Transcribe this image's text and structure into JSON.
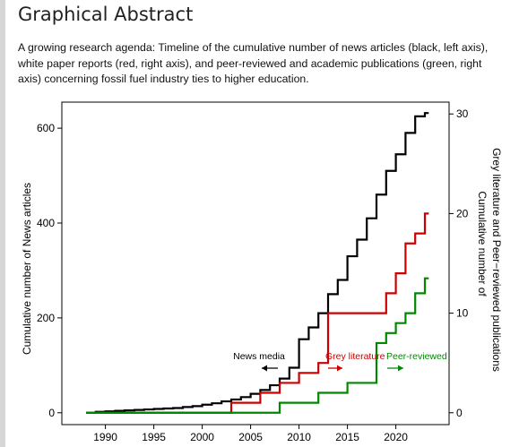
{
  "page": {
    "heading": "Graphical Abstract",
    "caption": "A growing research agenda: Timeline of the cumulative number of news articles (black, left axis), white paper reports (red, right axis), and peer-reviewed and academic publications (green, right axis) concerning fossil fuel industry ties to higher education."
  },
  "chart_data": {
    "type": "line",
    "step": true,
    "title": "",
    "xlabel": "",
    "ylabel": "Cumulative number of News articles",
    "ylabel_right": "Cumulative number of Grey literature and Peer−reviewed publications",
    "xlim": [
      1985.5,
      2025.5
    ],
    "ylim": [
      -25,
      655
    ],
    "ylim_right": [
      -1.19,
      31.19
    ],
    "xticks": [
      1990,
      1995,
      2000,
      2005,
      2010,
      2015,
      2020
    ],
    "yticks": [
      0,
      200,
      400,
      600
    ],
    "yticks_right": [
      0,
      10,
      20,
      30
    ],
    "grid": false,
    "series": [
      {
        "name": "News media",
        "axis": "left",
        "color": "#000000",
        "x": [
          1988,
          1989,
          1990,
          1991,
          1992,
          1993,
          1994,
          1995,
          1996,
          1997,
          1998,
          1999,
          2000,
          2001,
          2002,
          2003,
          2004,
          2005,
          2006,
          2007,
          2008,
          2009,
          2010,
          2011,
          2012,
          2013,
          2014,
          2015,
          2016,
          2017,
          2018,
          2019,
          2020,
          2021,
          2022,
          2023
        ],
        "values": [
          0,
          2,
          3,
          4,
          5,
          6,
          7,
          8,
          9,
          10,
          12,
          14,
          17,
          20,
          24,
          28,
          33,
          40,
          48,
          58,
          72,
          95,
          155,
          180,
          210,
          250,
          280,
          330,
          365,
          410,
          460,
          510,
          545,
          590,
          625,
          632
        ]
      },
      {
        "name": "Grey literature",
        "axis": "right",
        "color": "#cc0000",
        "x": [
          1988,
          2003,
          2006,
          2008,
          2010,
          2012,
          2013,
          2016,
          2019,
          2020,
          2021,
          2022,
          2023
        ],
        "values": [
          0,
          1,
          2,
          3,
          4,
          5,
          10,
          10,
          12,
          14,
          17,
          18,
          20
        ]
      },
      {
        "name": "Peer-reviewed",
        "axis": "right",
        "color": "#008800",
        "x": [
          1988,
          2008,
          2012,
          2015,
          2018,
          2019,
          2020,
          2021,
          2022,
          2023
        ],
        "values": [
          0,
          1,
          2,
          3,
          7,
          8,
          9,
          10,
          12,
          13.5
        ]
      }
    ],
    "annotations": [
      {
        "text": "News media",
        "color": "#000000",
        "arrow": "left"
      },
      {
        "text": "Grey literature",
        "color": "#cc0000",
        "arrow": "right"
      },
      {
        "text": "Peer-reviewed",
        "color": "#008800",
        "arrow": "right"
      }
    ]
  }
}
